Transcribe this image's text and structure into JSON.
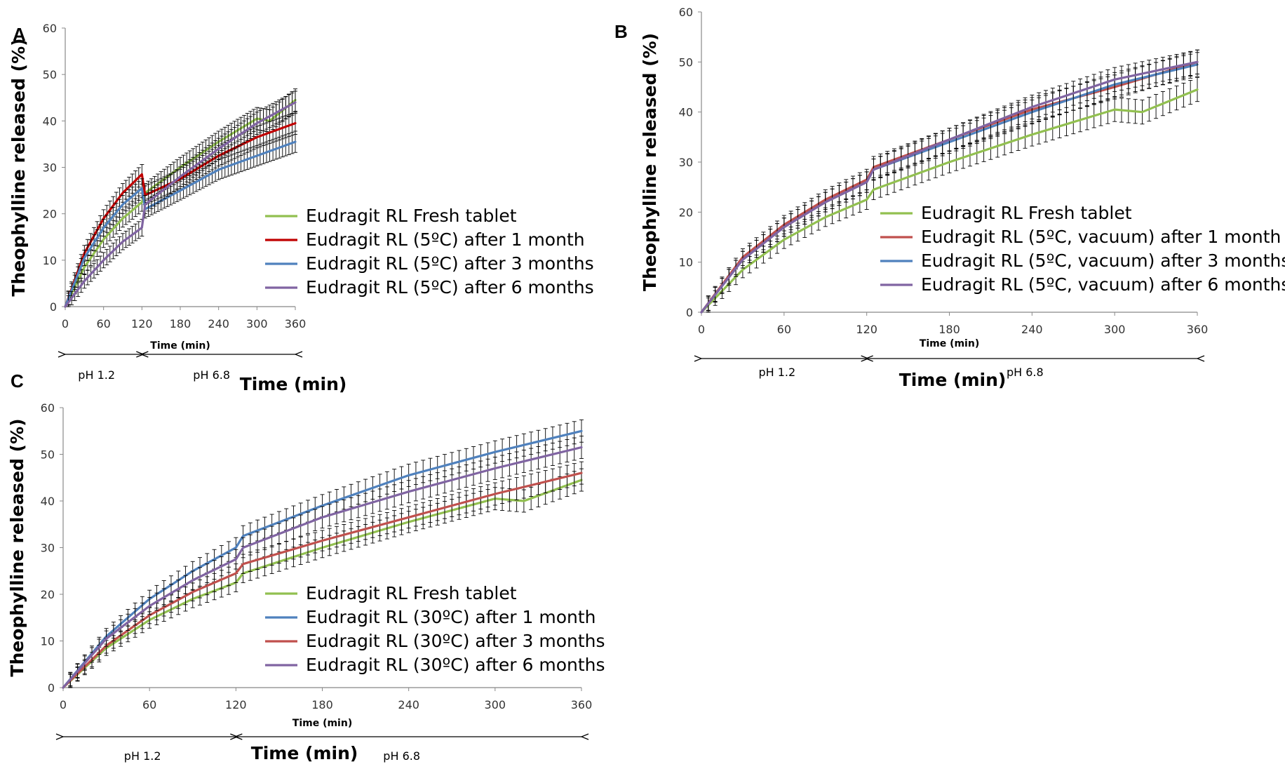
{
  "colors": {
    "green": "#92c050",
    "red": "#c00000",
    "red2": "#c0504d",
    "blue": "#4f81bd",
    "purple": "#8064a2",
    "axis": "#888888",
    "errbar": "#000000"
  },
  "chart_data": [
    {
      "panel_label": "A",
      "type": "line",
      "ylabel": "Theophylline released (%)",
      "xlabel_small": "Time (min)",
      "xlabel_big": "Time (min)",
      "xlim": [
        0,
        360
      ],
      "ylim": [
        0,
        60
      ],
      "xticks": [
        "0",
        "60",
        "120",
        "180",
        "240",
        "300",
        "360"
      ],
      "yticks": [
        "0",
        "10",
        "20",
        "30",
        "40",
        "50",
        "60"
      ],
      "ph_ranges": [
        {
          "label": "pH 1.2",
          "from": 0,
          "to": 120
        },
        {
          "label": "pH 6.8",
          "from": 120,
          "to": 360
        }
      ],
      "legend_position": "center-right",
      "error_bars": true,
      "series": [
        {
          "name": "Eudragit RL Fresh tablet",
          "color_key": "green",
          "x": [
            0,
            30,
            60,
            90,
            120,
            125,
            180,
            240,
            300,
            320,
            360
          ],
          "y": [
            0,
            8.5,
            14.5,
            19,
            22.5,
            24.5,
            30,
            35.5,
            40.5,
            40,
            44.5
          ]
        },
        {
          "name": "Eudragit RL (5ºC) after 1 month",
          "color_key": "red",
          "x": [
            0,
            30,
            60,
            90,
            120,
            125,
            180,
            240,
            300,
            360
          ],
          "y": [
            0,
            11.5,
            19,
            24.5,
            28.5,
            24,
            27.5,
            32.5,
            36.5,
            39.5
          ]
        },
        {
          "name": "Eudragit RL (5ºC) after 3 months",
          "color_key": "blue",
          "x": [
            0,
            30,
            60,
            90,
            120,
            125,
            180,
            240,
            300,
            360
          ],
          "y": [
            0,
            10.5,
            17,
            22,
            25.5,
            21,
            25,
            29.5,
            32.5,
            35.5
          ]
        },
        {
          "name": "Eudragit RL (5ºC) after 6 months",
          "color_key": "purple",
          "x": [
            0,
            30,
            60,
            90,
            120,
            125,
            180,
            240,
            300,
            360
          ],
          "y": [
            0,
            5.5,
            10,
            14,
            17,
            22,
            28,
            34,
            39.5,
            44
          ]
        }
      ]
    },
    {
      "panel_label": "B",
      "type": "line",
      "ylabel": "Theophylline released (%)",
      "xlabel_small": "Time (min)",
      "xlabel_big": "Time (min)",
      "xlim": [
        0,
        360
      ],
      "ylim": [
        0,
        60
      ],
      "xticks": [
        "0",
        "60",
        "120",
        "180",
        "240",
        "300",
        "360"
      ],
      "yticks": [
        "0",
        "10",
        "20",
        "30",
        "40",
        "50",
        "60"
      ],
      "ph_ranges": [
        {
          "label": "pH 1.2",
          "from": 0,
          "to": 120
        },
        {
          "label": "pH 6.8",
          "from": 120,
          "to": 360
        }
      ],
      "legend_position": "center-right",
      "error_bars": true,
      "series": [
        {
          "name": "Eudragit RL Fresh tablet",
          "color_key": "green",
          "x": [
            0,
            30,
            60,
            90,
            120,
            125,
            180,
            240,
            300,
            320,
            360
          ],
          "y": [
            0,
            8.5,
            14.5,
            19,
            22.5,
            24.5,
            30,
            35.5,
            40.5,
            40,
            44.5
          ]
        },
        {
          "name": "Eudragit RL (5ºC, vacuum) after 1 month",
          "color_key": "red2",
          "x": [
            0,
            30,
            60,
            90,
            120,
            125,
            180,
            240,
            300,
            360
          ],
          "y": [
            0,
            11,
            17.5,
            22.5,
            26.5,
            29,
            34.5,
            40.5,
            45,
            50
          ]
        },
        {
          "name": "Eudragit RL (5ºC, vacuum) after 3 months",
          "color_key": "blue",
          "x": [
            0,
            30,
            60,
            90,
            120,
            125,
            180,
            240,
            300,
            360
          ],
          "y": [
            0,
            10.5,
            17,
            22,
            26,
            28.5,
            34,
            40,
            45.5,
            49.5
          ]
        },
        {
          "name": "Eudragit RL (5ºC, vacuum) after 6 months",
          "color_key": "purple",
          "x": [
            0,
            30,
            60,
            90,
            120,
            125,
            180,
            240,
            300,
            360
          ],
          "y": [
            0,
            10.5,
            17,
            22,
            26,
            28.5,
            34.5,
            41,
            46.5,
            50
          ]
        }
      ]
    },
    {
      "panel_label": "C",
      "type": "line",
      "ylabel": "Theophylline released (%)",
      "xlabel_small": "Time (min)",
      "xlabel_big": "Time (min)",
      "xlim": [
        0,
        360
      ],
      "ylim": [
        0,
        60
      ],
      "xticks": [
        "0",
        "60",
        "120",
        "180",
        "240",
        "300",
        "360"
      ],
      "yticks": [
        "0",
        "10",
        "20",
        "30",
        "40",
        "50",
        "60"
      ],
      "ph_ranges": [
        {
          "label": "pH 1.2",
          "from": 0,
          "to": 120
        },
        {
          "label": "pH 6.8",
          "from": 120,
          "to": 360
        }
      ],
      "legend_position": "center-right",
      "error_bars": true,
      "series": [
        {
          "name": "Eudragit RL Fresh tablet",
          "color_key": "green",
          "x": [
            0,
            30,
            60,
            90,
            120,
            125,
            180,
            240,
            300,
            320,
            360
          ],
          "y": [
            0,
            8.5,
            14.5,
            19,
            22.5,
            24.5,
            30,
            35.5,
            40.5,
            40,
            44.5
          ]
        },
        {
          "name": "Eudragit RL (30ºC) after 1 month",
          "color_key": "blue",
          "x": [
            0,
            30,
            60,
            90,
            120,
            125,
            180,
            240,
            300,
            360
          ],
          "y": [
            0,
            11,
            19,
            25,
            30,
            32.5,
            39,
            45.5,
            50.5,
            55
          ]
        },
        {
          "name": "Eudragit RL (30ºC) after 3 months",
          "color_key": "red2",
          "x": [
            0,
            30,
            60,
            90,
            120,
            125,
            180,
            240,
            300,
            360
          ],
          "y": [
            0,
            9,
            15.5,
            20.5,
            24.5,
            26.5,
            31.5,
            36.5,
            41.5,
            46
          ]
        },
        {
          "name": "Eudragit RL (30ºC) after 6 months",
          "color_key": "purple",
          "x": [
            0,
            30,
            60,
            90,
            120,
            125,
            180,
            240,
            300,
            360
          ],
          "y": [
            0,
            10.5,
            17.5,
            23,
            27.5,
            30,
            36.5,
            42,
            47,
            51.5
          ]
        }
      ]
    }
  ]
}
